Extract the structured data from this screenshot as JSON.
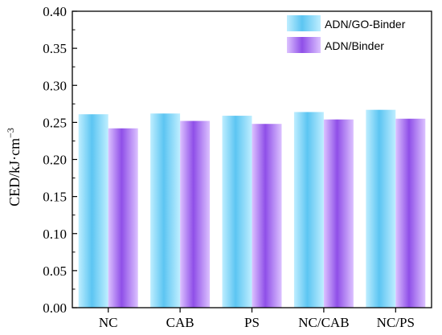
{
  "chart_data": {
    "type": "bar",
    "categories": [
      "NC",
      "CAB",
      "PS",
      "NC/CAB",
      "NC/PS"
    ],
    "series": [
      {
        "name": "ADN/GO-Binder",
        "values": [
          0.261,
          0.262,
          0.259,
          0.264,
          0.267
        ]
      },
      {
        "name": "ADN/Binder",
        "values": [
          0.242,
          0.252,
          0.248,
          0.254,
          0.255
        ]
      }
    ],
    "ylabel": "CED/kJ·cm",
    "ylabel_superscript": "−3",
    "xlabel": "",
    "ylim": [
      0.0,
      0.4
    ],
    "yticks": [
      "0.00",
      "0.05",
      "0.10",
      "0.15",
      "0.20",
      "0.25",
      "0.30",
      "0.35",
      "0.40"
    ],
    "legend_position": "top-right",
    "grid": false
  },
  "colors": {
    "series_1_light": "#bfeeff",
    "series_1_dark": "#5cc5f2",
    "series_2_light": "#dcc2ff",
    "series_2_dark": "#8f4fe8"
  }
}
